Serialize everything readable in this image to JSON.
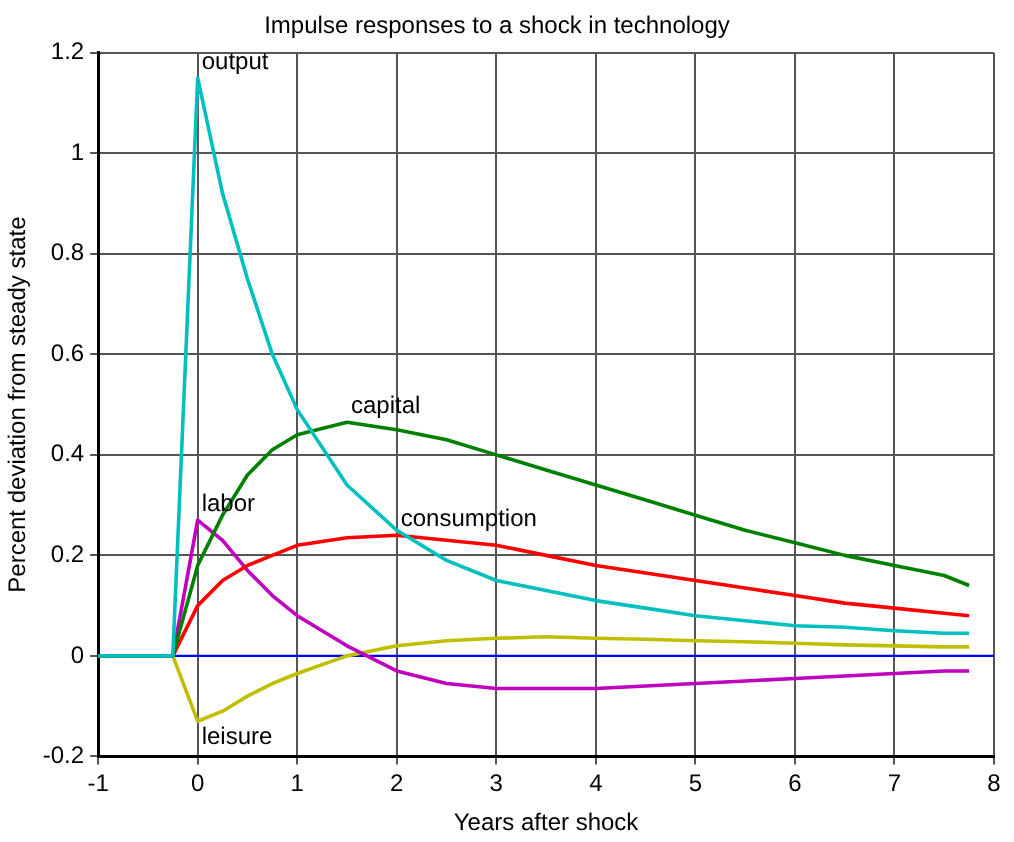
{
  "chart_data": {
    "type": "line",
    "title": "Impulse responses to a shock in technology",
    "xlabel": "Years after shock",
    "ylabel": "Percent deviation from steady state",
    "x": [
      -1,
      -0.25,
      0,
      0.25,
      0.5,
      0.75,
      1,
      1.5,
      2,
      2.5,
      3,
      3.5,
      4,
      4.5,
      5,
      5.5,
      6,
      6.5,
      7,
      7.5,
      7.75
    ],
    "series": [
      {
        "name": "output",
        "color": "#00bfbf",
        "values": [
          0,
          0,
          1.15,
          0.92,
          0.75,
          0.6,
          0.49,
          0.34,
          0.25,
          0.19,
          0.15,
          0.13,
          0.11,
          0.095,
          0.08,
          0.07,
          0.06,
          0.057,
          0.05,
          0.045,
          0.045
        ]
      },
      {
        "name": "capital",
        "color": "#008000",
        "values": [
          0,
          0,
          0.18,
          0.28,
          0.36,
          0.41,
          0.44,
          0.465,
          0.45,
          0.43,
          0.4,
          0.37,
          0.34,
          0.31,
          0.28,
          0.25,
          0.225,
          0.2,
          0.18,
          0.16,
          0.14
        ]
      },
      {
        "name": "consumption",
        "color": "#ff0000",
        "values": [
          0,
          0,
          0.1,
          0.15,
          0.18,
          0.2,
          0.22,
          0.235,
          0.24,
          0.23,
          0.22,
          0.2,
          0.18,
          0.165,
          0.15,
          0.135,
          0.12,
          0.105,
          0.095,
          0.085,
          0.08
        ]
      },
      {
        "name": "labor",
        "color": "#bf00bf",
        "values": [
          0,
          0,
          0.27,
          0.23,
          0.17,
          0.12,
          0.08,
          0.02,
          -0.03,
          -0.055,
          -0.065,
          -0.065,
          -0.065,
          -0.06,
          -0.055,
          -0.05,
          -0.045,
          -0.04,
          -0.035,
          -0.03,
          -0.03
        ]
      },
      {
        "name": "leisure",
        "color": "#bfbf00",
        "values": [
          0,
          0,
          -0.13,
          -0.11,
          -0.08,
          -0.055,
          -0.035,
          0,
          0.02,
          0.03,
          0.035,
          0.038,
          0.035,
          0.033,
          0.03,
          0.028,
          0.025,
          0.022,
          0.02,
          0.018,
          0.018
        ]
      }
    ],
    "xlim": [
      -1,
      8
    ],
    "xticks": [
      -1,
      0,
      1,
      2,
      3,
      4,
      5,
      6,
      7,
      8
    ],
    "ylim": [
      -0.2,
      1.2
    ],
    "yticks": [
      -0.2,
      0,
      0.2,
      0.4,
      0.6,
      0.8,
      1,
      1.2
    ],
    "ref_lines": [
      {
        "axis": "y",
        "value": 0,
        "color": "#0000ff"
      }
    ],
    "grid": true,
    "legend": false,
    "marker": "none",
    "line_style": "solid"
  }
}
